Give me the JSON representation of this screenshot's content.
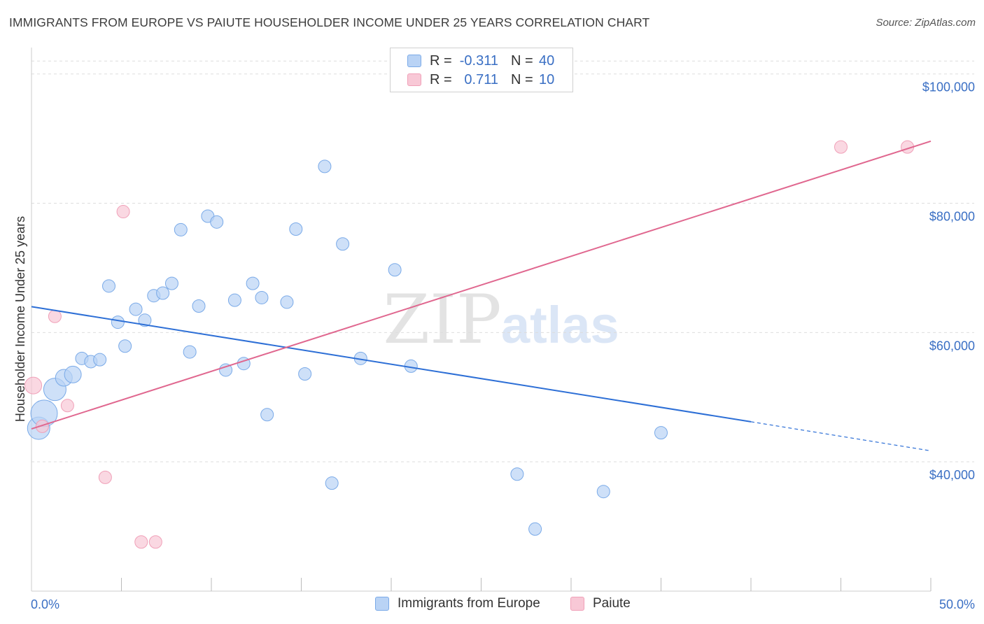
{
  "title": "IMMIGRANTS FROM EUROPE VS PAIUTE HOUSEHOLDER INCOME UNDER 25 YEARS CORRELATION CHART",
  "source": "Source: ZipAtlas.com",
  "watermark": {
    "zip": "ZIP",
    "atlas": "atlas"
  },
  "colors": {
    "blue": "#7aaae8",
    "blue_fill": "#b9d3f5",
    "blue_line": "#2d6fd6",
    "pink": "#f0a0b8",
    "pink_fill": "#f8c8d6",
    "pink_line": "#e0678f",
    "tick_text": "#3a6fc4"
  },
  "legend": {
    "rows": [
      {
        "r_label": "R =",
        "r_value": "-0.311",
        "n_label": "N =",
        "n_value": "40"
      },
      {
        "r_label": "R =",
        "r_value": "0.711",
        "n_label": "N =",
        "n_value": "10"
      }
    ]
  },
  "bottom_legend": [
    "Immigrants from Europe",
    "Paiute"
  ],
  "chart_data": {
    "type": "scatter",
    "title": "IMMIGRANTS FROM EUROPE VS PAIUTE HOUSEHOLDER INCOME UNDER 25 YEARS CORRELATION CHART",
    "xlabel": "",
    "ylabel": "Householder Income Under 25 years",
    "xlim": [
      0,
      50
    ],
    "ylim": [
      20000,
      103000
    ],
    "x_tick_labels": [
      "0.0%",
      "50.0%"
    ],
    "y_ticks": [
      40000,
      60000,
      80000,
      100000
    ],
    "y_tick_labels": [
      "$40,000",
      "$60,000",
      "$80,000",
      "$100,000"
    ],
    "series": [
      {
        "name": "Immigrants from Europe",
        "points": [
          {
            "x": 0.4,
            "y": 45200,
            "s": 3
          },
          {
            "x": 0.7,
            "y": 47500,
            "s": 4
          },
          {
            "x": 1.3,
            "y": 51200,
            "s": 3
          },
          {
            "x": 1.8,
            "y": 53000,
            "s": 2
          },
          {
            "x": 2.3,
            "y": 53500,
            "s": 2
          },
          {
            "x": 2.8,
            "y": 56000,
            "s": 1
          },
          {
            "x": 3.3,
            "y": 55500,
            "s": 1
          },
          {
            "x": 3.8,
            "y": 55800,
            "s": 1
          },
          {
            "x": 4.3,
            "y": 67200,
            "s": 1
          },
          {
            "x": 4.8,
            "y": 61600,
            "s": 1
          },
          {
            "x": 5.2,
            "y": 57900,
            "s": 1
          },
          {
            "x": 5.8,
            "y": 63600,
            "s": 1
          },
          {
            "x": 6.3,
            "y": 61900,
            "s": 1
          },
          {
            "x": 6.8,
            "y": 65700,
            "s": 1
          },
          {
            "x": 7.3,
            "y": 66100,
            "s": 1
          },
          {
            "x": 7.8,
            "y": 67600,
            "s": 1
          },
          {
            "x": 8.3,
            "y": 75900,
            "s": 1
          },
          {
            "x": 8.8,
            "y": 57000,
            "s": 1
          },
          {
            "x": 9.3,
            "y": 64100,
            "s": 1
          },
          {
            "x": 9.8,
            "y": 78000,
            "s": 1
          },
          {
            "x": 10.3,
            "y": 77100,
            "s": 1
          },
          {
            "x": 10.8,
            "y": 54200,
            "s": 1
          },
          {
            "x": 11.3,
            "y": 65000,
            "s": 1
          },
          {
            "x": 11.8,
            "y": 55200,
            "s": 1
          },
          {
            "x": 12.3,
            "y": 67600,
            "s": 1
          },
          {
            "x": 12.8,
            "y": 65400,
            "s": 1
          },
          {
            "x": 13.1,
            "y": 47300,
            "s": 1
          },
          {
            "x": 14.2,
            "y": 64700,
            "s": 1
          },
          {
            "x": 14.7,
            "y": 76000,
            "s": 1
          },
          {
            "x": 15.2,
            "y": 53600,
            "s": 1
          },
          {
            "x": 16.3,
            "y": 85700,
            "s": 1
          },
          {
            "x": 16.7,
            "y": 36700,
            "s": 1
          },
          {
            "x": 17.3,
            "y": 73700,
            "s": 1
          },
          {
            "x": 18.3,
            "y": 56000,
            "s": 1
          },
          {
            "x": 20.2,
            "y": 69700,
            "s": 1
          },
          {
            "x": 21.1,
            "y": 54800,
            "s": 1
          },
          {
            "x": 27.0,
            "y": 38100,
            "s": 1
          },
          {
            "x": 28.0,
            "y": 29600,
            "s": 1
          },
          {
            "x": 31.8,
            "y": 35400,
            "s": 1
          },
          {
            "x": 35.0,
            "y": 44500,
            "s": 1
          }
        ],
        "trend": {
          "x_start": 0,
          "y_start": 64000,
          "x_solid_end": 40,
          "y_solid_end": 46200,
          "x_end": 50,
          "y_end": 41700
        }
      },
      {
        "name": "Paiute",
        "points": [
          {
            "x": 0.1,
            "y": 51800,
            "s": 2
          },
          {
            "x": 0.6,
            "y": 45500,
            "s": 1
          },
          {
            "x": 1.3,
            "y": 62500,
            "s": 1
          },
          {
            "x": 2.0,
            "y": 48700,
            "s": 1
          },
          {
            "x": 4.1,
            "y": 37600,
            "s": 1
          },
          {
            "x": 5.1,
            "y": 78700,
            "s": 1
          },
          {
            "x": 6.1,
            "y": 27600,
            "s": 1
          },
          {
            "x": 6.9,
            "y": 27600,
            "s": 1
          },
          {
            "x": 45.0,
            "y": 88700,
            "s": 1
          },
          {
            "x": 48.7,
            "y": 88700,
            "s": 1
          }
        ],
        "trend": {
          "x_start": 0,
          "y_start": 45100,
          "x_end": 50,
          "y_end": 89600
        }
      }
    ]
  }
}
